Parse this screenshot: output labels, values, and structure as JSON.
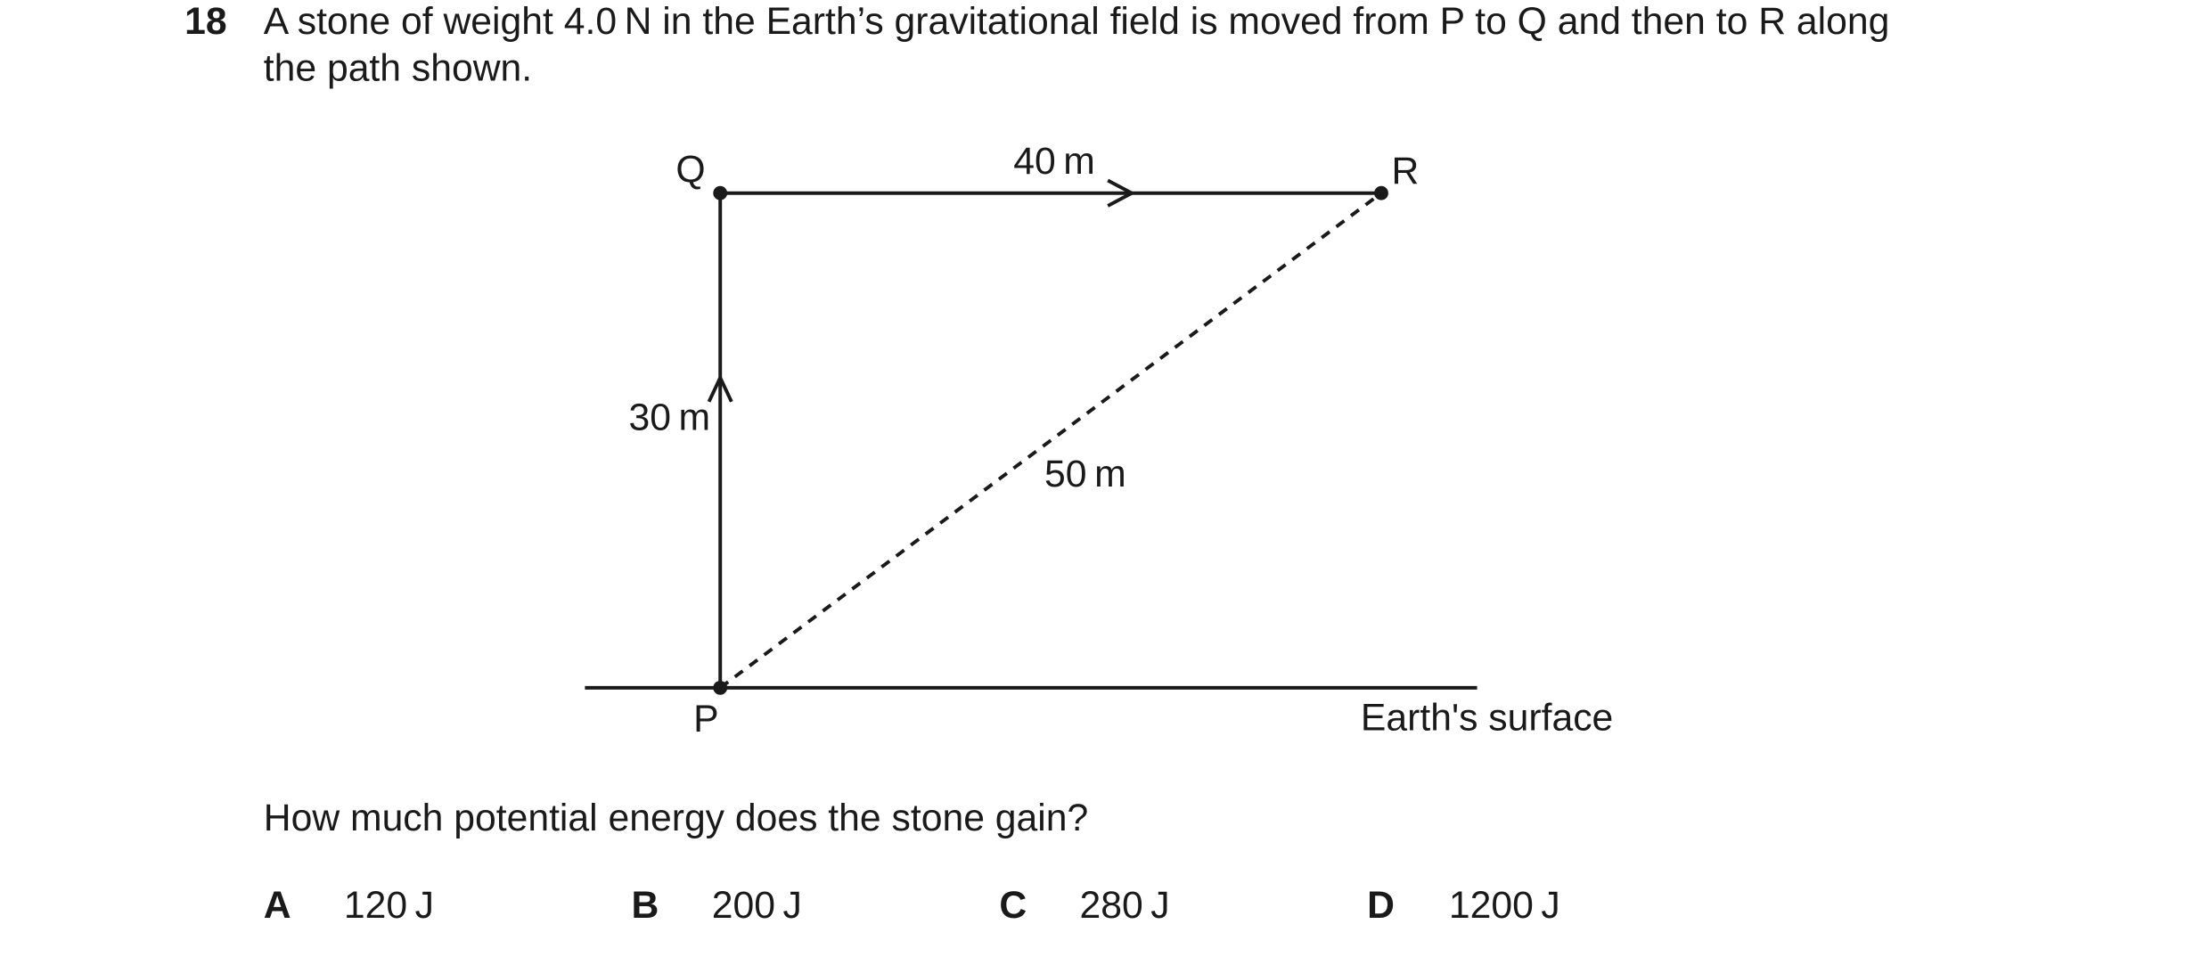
{
  "question": {
    "number": "18",
    "lines": [
      "A stone of weight 4.0 N in the Earth’s gravitational field is moved from P to Q and then to R along",
      "the path shown."
    ]
  },
  "diagram": {
    "points": {
      "P": "P",
      "Q": "Q",
      "R": "R"
    },
    "labels": {
      "qr": "40 m",
      "pq": "30 m",
      "pr": "50 m",
      "surface": "Earth's surface"
    }
  },
  "prompt": "How much potential energy does the stone gain?",
  "options": [
    {
      "letter": "A",
      "text": "120 J"
    },
    {
      "letter": "B",
      "text": "200 J"
    },
    {
      "letter": "C",
      "text": "280 J"
    },
    {
      "letter": "D",
      "text": "1200 J"
    }
  ]
}
